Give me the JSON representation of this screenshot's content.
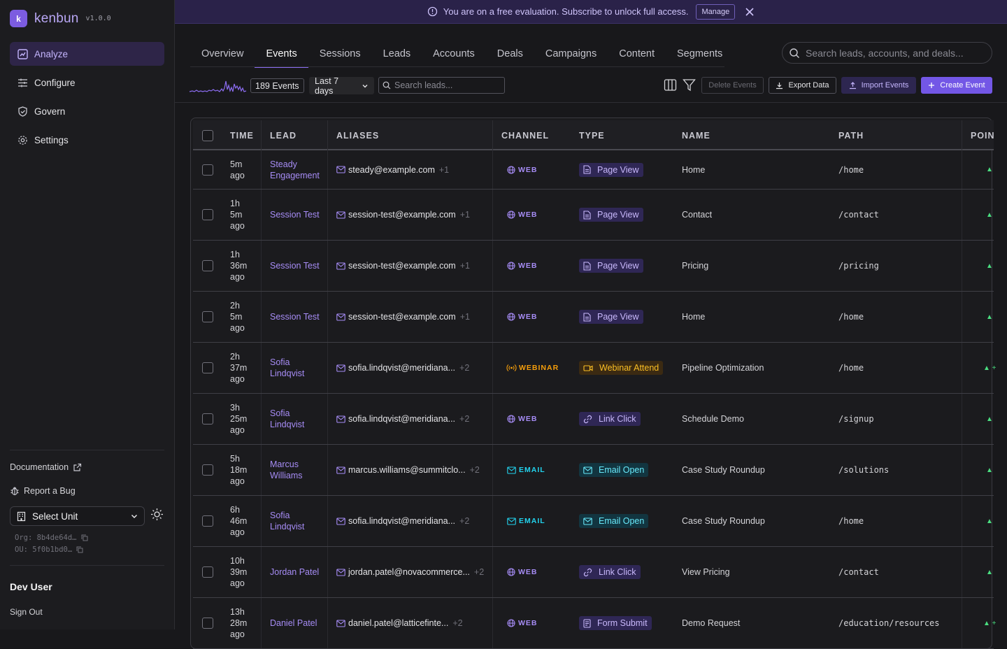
{
  "brand": {
    "logo": "k",
    "name": "kenbun",
    "version": "v1.0.0"
  },
  "nav": [
    {
      "label": "Analyze",
      "icon": "analyze-icon",
      "active": true
    },
    {
      "label": "Configure",
      "icon": "sliders-icon",
      "active": false
    },
    {
      "label": "Govern",
      "icon": "shield-icon",
      "active": false
    },
    {
      "label": "Settings",
      "icon": "gear-icon",
      "active": false
    }
  ],
  "sidebar_footer": {
    "documentation": "Documentation",
    "report_bug": "Report a Bug",
    "unit_select": "Select Unit",
    "org": "Org: 8b4de64d…",
    "ou": "OU: 5f0b1bd0…",
    "user": "Dev User",
    "sign_out": "Sign Out"
  },
  "banner": {
    "message": "You are on a free evaluation. Subscribe to unlock full access.",
    "manage": "Manage"
  },
  "tabs": [
    "Overview",
    "Events",
    "Sessions",
    "Leads",
    "Accounts",
    "Deals",
    "Campaigns",
    "Content",
    "Segments"
  ],
  "active_tab": "Events",
  "global_search": {
    "placeholder": "Search leads, accounts, and deals..."
  },
  "toolbar": {
    "count": "189 Events",
    "range": "Last 7 days",
    "lead_search_placeholder": "Search leads...",
    "delete": "Delete Events",
    "export": "Export Data",
    "import": "Import Events",
    "create": "Create Event"
  },
  "colors": {
    "accent": "#7357e6",
    "web": "#a68cf5",
    "webinar": "#f59e0b",
    "email": "#22d3ee",
    "points": "#4ade80"
  },
  "table": {
    "columns": [
      "TIME",
      "LEAD",
      "ALIASES",
      "CHANNEL",
      "TYPE",
      "NAME",
      "PATH",
      "POIN"
    ],
    "rows": [
      {
        "time": "5m\nago",
        "lead": "Steady Engagement",
        "alias": "steady@example.com",
        "more": "+1",
        "channel": "WEB",
        "type": "Page View",
        "name": "Home",
        "path": "/home",
        "points": "▲"
      },
      {
        "time": "1h\n5m\nago",
        "lead": "Session Test",
        "alias": "session-test@example.com",
        "more": "+1",
        "channel": "WEB",
        "type": "Page View",
        "name": "Contact",
        "path": "/contact",
        "points": "▲"
      },
      {
        "time": "1h\n36m\nago",
        "lead": "Session Test",
        "alias": "session-test@example.com",
        "more": "+1",
        "channel": "WEB",
        "type": "Page View",
        "name": "Pricing",
        "path": "/pricing",
        "points": "▲"
      },
      {
        "time": "2h\n5m\nago",
        "lead": "Session Test",
        "alias": "session-test@example.com",
        "more": "+1",
        "channel": "WEB",
        "type": "Page View",
        "name": "Home",
        "path": "/home",
        "points": "▲"
      },
      {
        "time": "2h\n37m\nago",
        "lead": "Sofia Lindqvist",
        "alias": "sofia.lindqvist@meridiana...",
        "more": "+2",
        "channel": "WEBINAR",
        "type": "Webinar Attend",
        "name": "Pipeline Optimization",
        "path": "/home",
        "points": "▲ +"
      },
      {
        "time": "3h\n25m\nago",
        "lead": "Sofia Lindqvist",
        "alias": "sofia.lindqvist@meridiana...",
        "more": "+2",
        "channel": "WEB",
        "type": "Link Click",
        "name": "Schedule Demo",
        "path": "/signup",
        "points": "▲"
      },
      {
        "time": "5h\n18m\nago",
        "lead": "Marcus Williams",
        "alias": "marcus.williams@summitclo...",
        "more": "+2",
        "channel": "EMAIL",
        "type": "Email Open",
        "name": "Case Study Roundup",
        "path": "/solutions",
        "points": "▲"
      },
      {
        "time": "6h\n46m\nago",
        "lead": "Sofia Lindqvist",
        "alias": "sofia.lindqvist@meridiana...",
        "more": "+2",
        "channel": "EMAIL",
        "type": "Email Open",
        "name": "Case Study Roundup",
        "path": "/home",
        "points": "▲"
      },
      {
        "time": "10h\n39m\nago",
        "lead": "Jordan Patel",
        "alias": "jordan.patel@novacommerce...",
        "more": "+2",
        "channel": "WEB",
        "type": "Link Click",
        "name": "View Pricing",
        "path": "/contact",
        "points": "▲"
      },
      {
        "time": "13h\n28m\nago",
        "lead": "Daniel Patel",
        "alias": "daniel.patel@latticefinte...",
        "more": "+2",
        "channel": "WEB",
        "type": "Form Submit",
        "name": "Demo Request",
        "path": "/education/resources",
        "points": "▲ +"
      }
    ]
  }
}
